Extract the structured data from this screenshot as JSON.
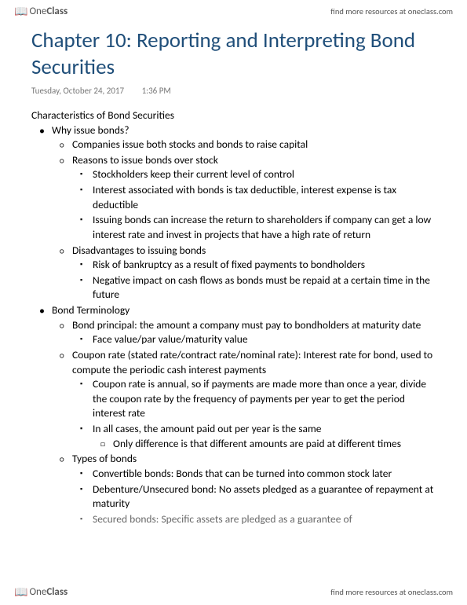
{
  "header": {
    "logo_pre": "One",
    "logo_bold": "Class",
    "link": "find more resources at oneclass.com"
  },
  "title": "Chapter 10: Reporting and Interpreting Bond Securities",
  "meta": {
    "date": "Tuesday, October 24, 2017",
    "time": "1:36 PM"
  },
  "section_title": "Characteristics of Bond Securities",
  "b1": {
    "title": "Why issue bonds?",
    "p1": "Companies issue both stocks and bonds to raise capital",
    "p2": "Reasons to issue bonds over stock",
    "r1": "Stockholders keep their current level of control",
    "r2": "Interest associated with bonds is tax deductible, interest expense is tax deductible",
    "r3": "Issuing bonds can increase the return to shareholders if company can get a low interest rate and invest in projects that have a high rate of return",
    "p3": "Disadvantages to issuing bonds",
    "d1": "Risk of bankruptcy as a result of fixed payments to bondholders",
    "d2": "Negative impact on cash flows as bonds must be repaid at a certain time in the future"
  },
  "b2": {
    "title": "Bond Terminology",
    "p1": "Bond principal: the amount a company must pay to bondholders at maturity date",
    "p1a": "Face value/par value/maturity value",
    "p2": "Coupon rate (stated rate/contract rate/nominal rate): Interest rate for bond, used to compute the periodic cash interest payments",
    "c1": "Coupon rate is annual, so if payments are made more than once a year, divide the coupon rate by the frequency of payments per year to get the period interest rate",
    "c2": "In all cases, the amount paid out per year is the same",
    "c2a": "Only difference is that different amounts are paid at different times",
    "p3": "Types of bonds",
    "t1": "Convertible bonds: Bonds that can be turned into common stock later",
    "t2": "Debenture/Unsecured bond: No assets pledged as a guarantee of repayment at maturity",
    "t3": "Secured bonds: Specific assets are pledged as a guarantee of"
  },
  "footer": {
    "logo_pre": "One",
    "logo_bold": "Class",
    "link": "find more resources at oneclass.com"
  }
}
